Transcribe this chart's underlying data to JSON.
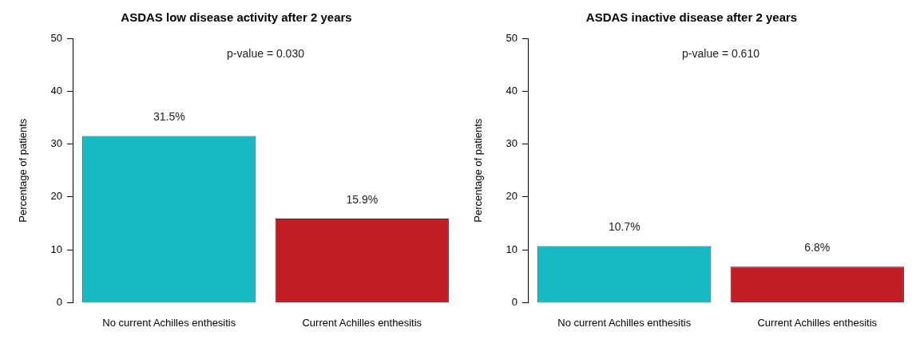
{
  "chart_data": [
    {
      "type": "bar",
      "title": "ASDAS low disease activity after 2 years",
      "ylabel": "Percentage of patients",
      "categories": [
        "No current Achilles enthesitis",
        "Current Achilles enthesitis"
      ],
      "values": [
        31.5,
        15.9
      ],
      "colors": [
        "#17b9c3",
        "#c01d25"
      ],
      "value_labels": [
        "31.5%",
        "15.9%"
      ],
      "ylim": [
        0,
        50
      ],
      "yticks": [
        0,
        10,
        20,
        30,
        40,
        50
      ],
      "annotations": [
        "p-value = 0.030"
      ]
    },
    {
      "type": "bar",
      "title": "ASDAS inactive disease after 2 years",
      "ylabel": "Percentage of patients",
      "categories": [
        "No current Achilles enthesitis",
        "Current Achilles enthesitis"
      ],
      "values": [
        10.7,
        6.8
      ],
      "colors": [
        "#17b9c3",
        "#c01d25"
      ],
      "value_labels": [
        "10.7%",
        "6.8%"
      ],
      "ylim": [
        0,
        50
      ],
      "yticks": [
        0,
        10,
        20,
        30,
        40,
        50
      ],
      "annotations": [
        "p-value = 0.610"
      ]
    }
  ]
}
